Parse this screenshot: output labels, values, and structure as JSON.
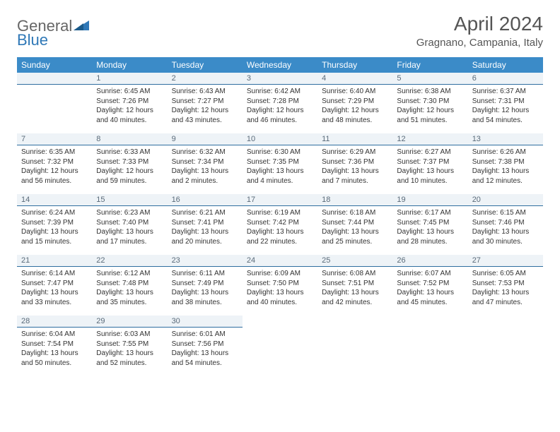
{
  "logo": {
    "text1": "General",
    "text2": "Blue"
  },
  "title": "April 2024",
  "location": "Gragnano, Campania, Italy",
  "colors": {
    "header_bg": "#3b8bc8",
    "header_text": "#ffffff",
    "daynum_bg": "#eef3f7",
    "daynum_border": "#2f6ea0",
    "text": "#333333",
    "logo_gray": "#666666",
    "logo_blue": "#2f78b7"
  },
  "weekdays": [
    "Sunday",
    "Monday",
    "Tuesday",
    "Wednesday",
    "Thursday",
    "Friday",
    "Saturday"
  ],
  "weeks": [
    [
      {
        "blank": true
      },
      {
        "day": "1",
        "sunrise": "6:45 AM",
        "sunset": "7:26 PM",
        "daylight": "12 hours and 40 minutes."
      },
      {
        "day": "2",
        "sunrise": "6:43 AM",
        "sunset": "7:27 PM",
        "daylight": "12 hours and 43 minutes."
      },
      {
        "day": "3",
        "sunrise": "6:42 AM",
        "sunset": "7:28 PM",
        "daylight": "12 hours and 46 minutes."
      },
      {
        "day": "4",
        "sunrise": "6:40 AM",
        "sunset": "7:29 PM",
        "daylight": "12 hours and 48 minutes."
      },
      {
        "day": "5",
        "sunrise": "6:38 AM",
        "sunset": "7:30 PM",
        "daylight": "12 hours and 51 minutes."
      },
      {
        "day": "6",
        "sunrise": "6:37 AM",
        "sunset": "7:31 PM",
        "daylight": "12 hours and 54 minutes."
      }
    ],
    [
      {
        "day": "7",
        "sunrise": "6:35 AM",
        "sunset": "7:32 PM",
        "daylight": "12 hours and 56 minutes."
      },
      {
        "day": "8",
        "sunrise": "6:33 AM",
        "sunset": "7:33 PM",
        "daylight": "12 hours and 59 minutes."
      },
      {
        "day": "9",
        "sunrise": "6:32 AM",
        "sunset": "7:34 PM",
        "daylight": "13 hours and 2 minutes."
      },
      {
        "day": "10",
        "sunrise": "6:30 AM",
        "sunset": "7:35 PM",
        "daylight": "13 hours and 4 minutes."
      },
      {
        "day": "11",
        "sunrise": "6:29 AM",
        "sunset": "7:36 PM",
        "daylight": "13 hours and 7 minutes."
      },
      {
        "day": "12",
        "sunrise": "6:27 AM",
        "sunset": "7:37 PM",
        "daylight": "13 hours and 10 minutes."
      },
      {
        "day": "13",
        "sunrise": "6:26 AM",
        "sunset": "7:38 PM",
        "daylight": "13 hours and 12 minutes."
      }
    ],
    [
      {
        "day": "14",
        "sunrise": "6:24 AM",
        "sunset": "7:39 PM",
        "daylight": "13 hours and 15 minutes."
      },
      {
        "day": "15",
        "sunrise": "6:23 AM",
        "sunset": "7:40 PM",
        "daylight": "13 hours and 17 minutes."
      },
      {
        "day": "16",
        "sunrise": "6:21 AM",
        "sunset": "7:41 PM",
        "daylight": "13 hours and 20 minutes."
      },
      {
        "day": "17",
        "sunrise": "6:19 AM",
        "sunset": "7:42 PM",
        "daylight": "13 hours and 22 minutes."
      },
      {
        "day": "18",
        "sunrise": "6:18 AM",
        "sunset": "7:44 PM",
        "daylight": "13 hours and 25 minutes."
      },
      {
        "day": "19",
        "sunrise": "6:17 AM",
        "sunset": "7:45 PM",
        "daylight": "13 hours and 28 minutes."
      },
      {
        "day": "20",
        "sunrise": "6:15 AM",
        "sunset": "7:46 PM",
        "daylight": "13 hours and 30 minutes."
      }
    ],
    [
      {
        "day": "21",
        "sunrise": "6:14 AM",
        "sunset": "7:47 PM",
        "daylight": "13 hours and 33 minutes."
      },
      {
        "day": "22",
        "sunrise": "6:12 AM",
        "sunset": "7:48 PM",
        "daylight": "13 hours and 35 minutes."
      },
      {
        "day": "23",
        "sunrise": "6:11 AM",
        "sunset": "7:49 PM",
        "daylight": "13 hours and 38 minutes."
      },
      {
        "day": "24",
        "sunrise": "6:09 AM",
        "sunset": "7:50 PM",
        "daylight": "13 hours and 40 minutes."
      },
      {
        "day": "25",
        "sunrise": "6:08 AM",
        "sunset": "7:51 PM",
        "daylight": "13 hours and 42 minutes."
      },
      {
        "day": "26",
        "sunrise": "6:07 AM",
        "sunset": "7:52 PM",
        "daylight": "13 hours and 45 minutes."
      },
      {
        "day": "27",
        "sunrise": "6:05 AM",
        "sunset": "7:53 PM",
        "daylight": "13 hours and 47 minutes."
      }
    ],
    [
      {
        "day": "28",
        "sunrise": "6:04 AM",
        "sunset": "7:54 PM",
        "daylight": "13 hours and 50 minutes."
      },
      {
        "day": "29",
        "sunrise": "6:03 AM",
        "sunset": "7:55 PM",
        "daylight": "13 hours and 52 minutes."
      },
      {
        "day": "30",
        "sunrise": "6:01 AM",
        "sunset": "7:56 PM",
        "daylight": "13 hours and 54 minutes."
      },
      {
        "blank": true
      },
      {
        "blank": true
      },
      {
        "blank": true
      },
      {
        "blank": true
      }
    ]
  ],
  "labels": {
    "sunrise": "Sunrise:",
    "sunset": "Sunset:",
    "daylight": "Daylight:"
  }
}
